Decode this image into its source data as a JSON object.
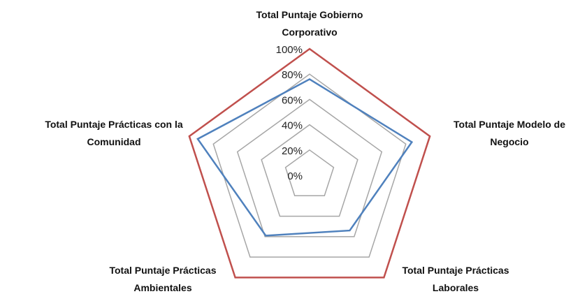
{
  "chart_data": {
    "type": "radar",
    "categories": [
      "Total Puntaje Gobierno\nCorporativo",
      "Total Puntaje Modelo de\nNegocio",
      "Total Puntaje Prácticas\nLaborales",
      "Total Puntaje Prácticas\nAmbientales",
      "Total Puntaje Prácticas con la\nComunidad"
    ],
    "series": [
      {
        "color": "#c0504d",
        "values": [
          100,
          100,
          100,
          100,
          100
        ]
      },
      {
        "color": "#4f81bd",
        "values": [
          76,
          85,
          54,
          59,
          93
        ]
      }
    ],
    "ylim": [
      0,
      100
    ],
    "yticks": [
      {
        "value": 0,
        "label": "0%"
      },
      {
        "value": 20,
        "label": "20%"
      },
      {
        "value": 40,
        "label": "40%"
      },
      {
        "value": 60,
        "label": "60%"
      },
      {
        "value": 80,
        "label": "80%"
      },
      {
        "value": 100,
        "label": "100%"
      }
    ],
    "grid": true,
    "grid_color": "#a6a6a6"
  }
}
